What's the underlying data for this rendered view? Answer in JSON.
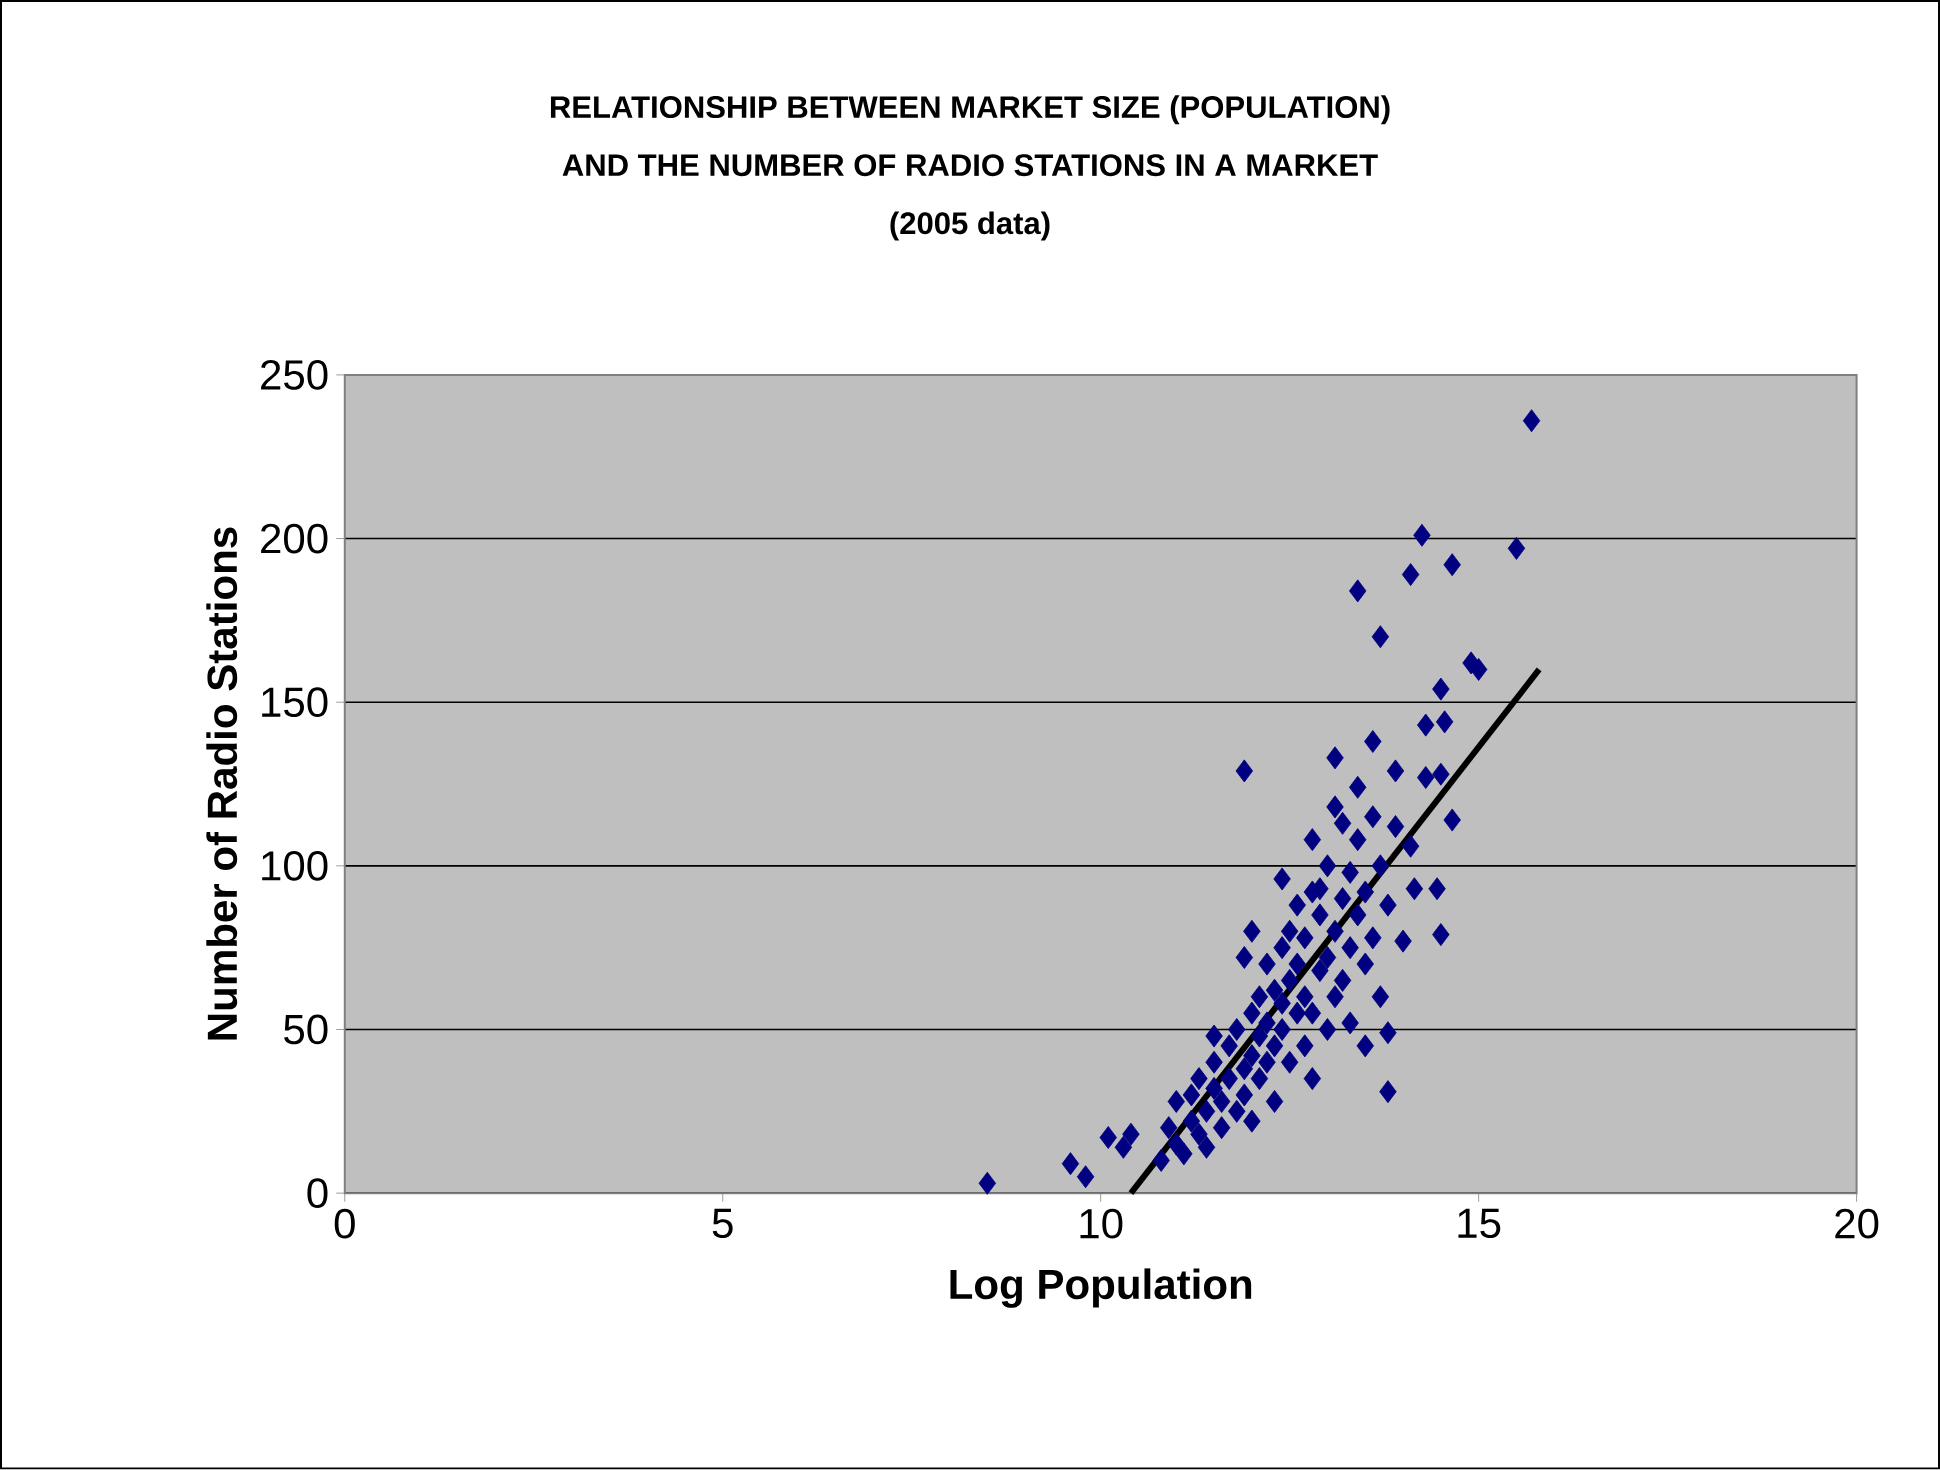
{
  "chart_data": {
    "type": "scatter",
    "title": "RELATIONSHIP BETWEEN MARKET SIZE (POPULATION)\nAND THE NUMBER OF RADIO STATIONS IN A MARKET\n(2005 data)",
    "xlabel": "Log Population",
    "ylabel": "Number of Radio Stations",
    "xlim": [
      0,
      20
    ],
    "xticks": [
      0,
      5,
      10,
      15,
      20
    ],
    "ylim": [
      0,
      250
    ],
    "yticks": [
      0,
      50,
      100,
      150,
      200,
      250
    ],
    "grid": "y",
    "marker": "diamond",
    "series": [
      {
        "color": "#000080",
        "x": [
          8.5,
          9.6,
          9.8,
          10.1,
          10.3,
          10.4,
          15.7,
          15.5,
          14.25,
          13.4,
          14.1,
          14.65,
          13.7,
          14.9,
          15.0,
          14.5,
          14.55,
          14.3,
          13.6,
          13.9,
          13.1,
          13.4,
          14.5,
          14.65,
          14.3,
          11.9,
          14.1,
          14.45,
          14.5,
          14.15,
          14.0,
          13.8,
          13.8,
          13.2,
          12.8,
          12.9,
          12.4,
          10.8,
          10.9,
          11.0,
          11.0,
          11.1,
          11.2,
          11.2,
          11.3,
          11.3,
          11.4,
          11.4,
          11.5,
          11.5,
          11.6,
          11.6,
          11.7,
          11.7,
          11.8,
          11.8,
          11.9,
          11.9,
          12.0,
          12.0,
          12.0,
          12.1,
          12.1,
          12.1,
          12.2,
          12.2,
          12.2,
          12.3,
          12.3,
          12.3,
          12.4,
          12.4,
          12.4,
          12.5,
          12.5,
          12.5,
          12.6,
          12.6,
          12.6,
          12.7,
          12.7,
          12.7,
          12.8,
          12.8,
          12.8,
          12.9,
          12.9,
          13.0,
          13.0,
          13.0,
          13.1,
          13.1,
          13.1,
          13.2,
          13.2,
          13.3,
          13.3,
          13.3,
          13.4,
          13.4,
          13.5,
          13.5,
          13.5,
          13.6,
          13.6,
          13.7,
          13.7,
          13.8,
          13.9,
          12.0,
          11.5,
          11.9
        ],
        "values": [
          3,
          9,
          5,
          17,
          14,
          18,
          236,
          197,
          201,
          184,
          189,
          192,
          170,
          162,
          160,
          154,
          144,
          143,
          138,
          129,
          133,
          124,
          128,
          114,
          127,
          129,
          106,
          93,
          79,
          93,
          77,
          49,
          31,
          113,
          108,
          93,
          96,
          10,
          20,
          15,
          28,
          12,
          22,
          30,
          18,
          35,
          25,
          14,
          32,
          40,
          20,
          28,
          45,
          35,
          25,
          50,
          38,
          30,
          55,
          42,
          22,
          48,
          60,
          35,
          52,
          40,
          70,
          45,
          62,
          28,
          58,
          75,
          50,
          80,
          65,
          40,
          55,
          88,
          70,
          60,
          45,
          78,
          92,
          55,
          35,
          68,
          85,
          100,
          72,
          50,
          80,
          60,
          118,
          90,
          65,
          98,
          75,
          52,
          85,
          108,
          70,
          92,
          45,
          115,
          78,
          60,
          100,
          88,
          112,
          80,
          48,
          72
        ]
      },
      {
        "type": "line",
        "color": "#000000",
        "marker": "none",
        "x": [
          10.4,
          15.8
        ],
        "values": [
          0,
          160
        ]
      }
    ]
  }
}
